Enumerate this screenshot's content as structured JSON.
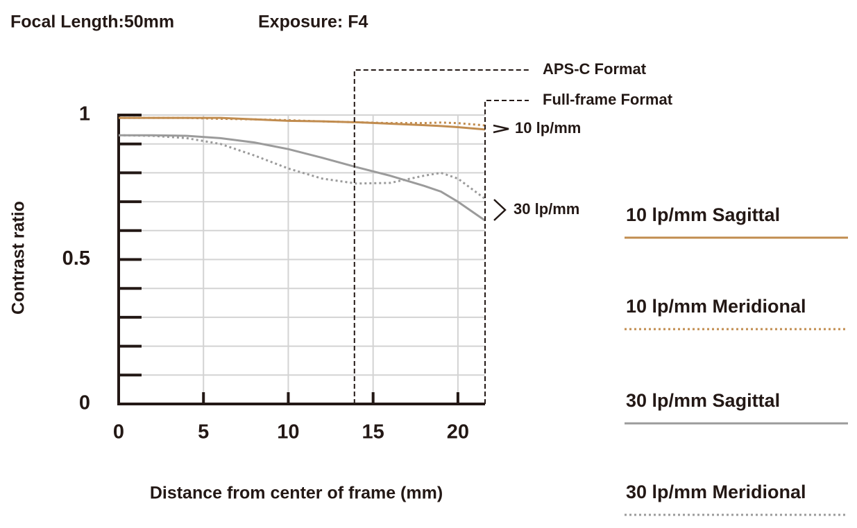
{
  "chart_data": {
    "type": "line",
    "title": "Focal Length:50mm",
    "subtitle": "Exposure: F4",
    "x_label": "Distance from center of frame (mm)",
    "y_label": "Contrast ratio",
    "x": [
      0,
      2,
      4,
      6,
      8,
      10,
      12,
      14,
      16,
      18,
      19,
      20,
      21.6
    ],
    "series": [
      {
        "name": "10 lp/mm Sagittal",
        "color": "#c18c4f",
        "dash": "solid",
        "values": [
          0.99,
          0.99,
          0.99,
          0.99,
          0.985,
          0.98,
          0.978,
          0.975,
          0.97,
          0.965,
          0.962,
          0.958,
          0.95
        ]
      },
      {
        "name": "10 lp/mm Meridional",
        "color": "#c18c4f",
        "dash": "dotted",
        "values": [
          0.99,
          0.99,
          0.99,
          0.987,
          0.985,
          0.982,
          0.978,
          0.975,
          0.972,
          0.972,
          0.974,
          0.972,
          0.964
        ]
      },
      {
        "name": "30 lp/mm Sagittal",
        "color": "#9b9b9b",
        "dash": "solid",
        "values": [
          0.93,
          0.93,
          0.928,
          0.92,
          0.905,
          0.882,
          0.852,
          0.82,
          0.79,
          0.755,
          0.735,
          0.7,
          0.635
        ]
      },
      {
        "name": "30 lp/mm Meridional",
        "color": "#9b9b9b",
        "dash": "dotted",
        "values": [
          0.93,
          0.928,
          0.92,
          0.9,
          0.86,
          0.815,
          0.78,
          0.763,
          0.765,
          0.79,
          0.8,
          0.78,
          0.71
        ]
      }
    ],
    "xlim": [
      0,
      21.6
    ],
    "ylim": [
      0,
      1
    ],
    "xticks": [
      0,
      5,
      10,
      15,
      20
    ],
    "yticks": [
      0,
      0.5,
      1
    ],
    "yminor_ticks": [
      0.1,
      0.2,
      0.3,
      0.4,
      0.6,
      0.7,
      0.8,
      0.9
    ],
    "grid": true,
    "formats": [
      {
        "label": "APS-C Format",
        "x": 13.9
      },
      {
        "label": "Full-frame Format",
        "x": 21.6
      }
    ],
    "annotations": [
      "10 lp/mm",
      "30 lp/mm"
    ],
    "legend": "right"
  }
}
